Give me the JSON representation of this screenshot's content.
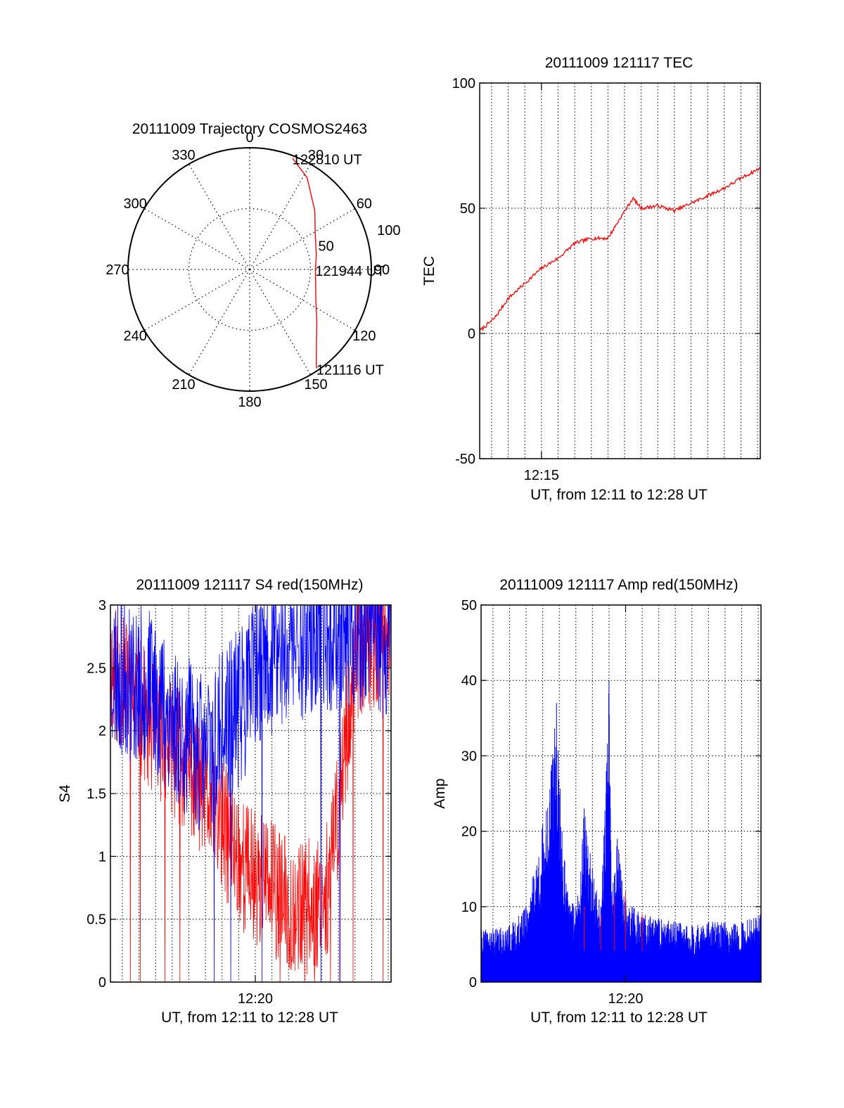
{
  "chart_data": [
    {
      "type": "polar",
      "title": "20111009 Trajectory COSMOS2463",
      "angle_ticks": [
        "0",
        "30",
        "60",
        "90",
        "120",
        "150",
        "180",
        "210",
        "240",
        "270",
        "300",
        "330"
      ],
      "radial_ticks": [
        "50",
        "100"
      ],
      "rlim": [
        0,
        100
      ],
      "grid": true,
      "series": [
        {
          "color": "#ff0000",
          "points": [
            {
              "az": 146,
              "r": 98
            },
            {
              "az": 138,
              "r": 82
            },
            {
              "az": 128,
              "r": 70
            },
            {
              "az": 115,
              "r": 60
            },
            {
              "az": 100,
              "r": 55
            },
            {
              "az": 90,
              "r": 54
            },
            {
              "az": 78,
              "r": 56
            },
            {
              "az": 62,
              "r": 61
            },
            {
              "az": 48,
              "r": 72
            },
            {
              "az": 32,
              "r": 89
            },
            {
              "az": 21,
              "r": 98
            }
          ]
        }
      ],
      "annotations": [
        {
          "text": "122810 UT",
          "az": 21,
          "r": 98
        },
        {
          "text": "121944 UT",
          "az": 90,
          "r": 54
        },
        {
          "text": "121116 UT",
          "az": 146,
          "r": 98
        }
      ]
    },
    {
      "type": "line",
      "title": "20111009 121117 TEC",
      "ylabel": "TEC",
      "xlabel": "UT, from 12:11 to 12:28 UT",
      "xlim": [
        "12:11:17",
        "12:28:10"
      ],
      "x_ticks": [
        "12:15"
      ],
      "ylim": [
        -50,
        100
      ],
      "y_ticks": [
        "-50",
        "0",
        "50",
        "100"
      ],
      "grid": true,
      "series": [
        {
          "color": "#ff0000",
          "x": [
            "12:11:17",
            "12:12:10",
            "12:13:00",
            "12:14:00",
            "12:15:00",
            "12:16:00",
            "12:17:00",
            "12:18:00",
            "12:19:00",
            "12:19:44",
            "12:20:30",
            "12:21:00",
            "12:22:00",
            "12:23:00",
            "12:24:00",
            "12:25:00",
            "12:26:00",
            "12:27:00",
            "12:28:10"
          ],
          "values": [
            1,
            6,
            14,
            20,
            26,
            30,
            36,
            38,
            38,
            46,
            54,
            50,
            51,
            49,
            52,
            55,
            58,
            62,
            66
          ]
        }
      ]
    },
    {
      "type": "line",
      "title": "20111009 121117 S4 red(150MHz)",
      "ylabel": "S4",
      "xlabel": "UT, from 12:11 to 12:28 UT",
      "xlim": [
        "12:11:17",
        "12:28:10"
      ],
      "x_ticks": [
        "12:20"
      ],
      "ylim": [
        0,
        3
      ],
      "y_ticks": [
        "0",
        "0.5",
        "1",
        "1.5",
        "2",
        "2.5",
        "3"
      ],
      "grid": true,
      "series": [
        {
          "color": "#ff0000",
          "x": [
            "12:11:17",
            "12:12:30",
            "12:14:00",
            "12:15:30",
            "12:17:00",
            "12:18:30",
            "12:19:30",
            "12:20:30",
            "12:22:00",
            "12:23:30",
            "12:24:30",
            "12:26:00",
            "12:27:00",
            "12:28:10"
          ],
          "values": [
            2.5,
            2.3,
            2.0,
            1.8,
            1.5,
            1.1,
            0.9,
            0.8,
            0.6,
            0.6,
            0.8,
            2.6,
            2.7,
            2.8
          ]
        },
        {
          "color": "#0000ff",
          "x": [
            "12:11:17",
            "12:12:30",
            "12:14:00",
            "12:15:30",
            "12:17:00",
            "12:18:00",
            "12:19:00",
            "12:20:00",
            "12:21:00",
            "12:22:30",
            "12:24:00",
            "12:26:00",
            "12:28:10"
          ],
          "values": [
            2.5,
            2.4,
            2.3,
            2.0,
            1.8,
            2.0,
            2.2,
            2.4,
            2.6,
            2.7,
            2.8,
            2.8,
            2.7
          ]
        }
      ]
    },
    {
      "type": "bar",
      "title": "20111009 121117 Amp red(150MHz)",
      "ylabel": "Amp",
      "xlabel": "UT, from 12:11 to 12:28 UT",
      "xlim": [
        "12:11:17",
        "12:28:10"
      ],
      "x_ticks": [
        "12:20"
      ],
      "ylim": [
        0,
        50
      ],
      "y_ticks": [
        "0",
        "10",
        "20",
        "30",
        "40",
        "50"
      ],
      "grid": true,
      "series": [
        {
          "color": "#0000ff",
          "x": [
            "12:11:17",
            "12:12:00",
            "12:13:00",
            "12:14:00",
            "12:15:00",
            "12:15:30",
            "12:15:50",
            "12:16:10",
            "12:16:30",
            "12:17:00",
            "12:17:30",
            "12:18:00",
            "12:18:30",
            "12:19:00",
            "12:19:10",
            "12:19:30",
            "12:20:00",
            "12:21:00",
            "12:22:00",
            "12:23:00",
            "12:24:00",
            "12:25:00",
            "12:26:00",
            "12:27:00",
            "12:28:10"
          ],
          "values": [
            7,
            7,
            7.5,
            10,
            21,
            28,
            37,
            20,
            12,
            10,
            23,
            15,
            10,
            40,
            12,
            19,
            11,
            9,
            8.5,
            8,
            7.5,
            8,
            8,
            8,
            9
          ]
        },
        {
          "color": "#ff0000",
          "x": [
            "12:17:30",
            "12:18:30",
            "12:19:20",
            "12:20:00",
            "12:21:00"
          ],
          "values": [
            10,
            9,
            11,
            12,
            9
          ]
        }
      ]
    }
  ]
}
